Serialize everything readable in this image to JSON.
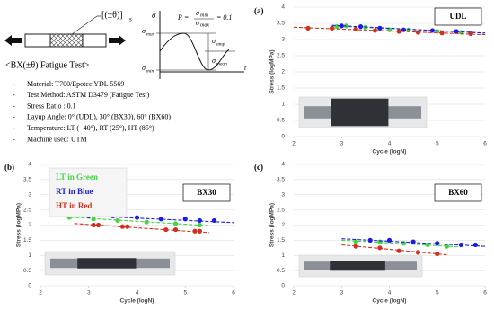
{
  "diagram": {
    "layup_label": "[(±θ)]",
    "layup_sub": "s",
    "formula": {
      "lhs": "R =",
      "num": "σ",
      "num_sub": "min",
      "den": "σ",
      "den_sub": "max",
      "rhs": "= 0.1"
    },
    "axis_sigma": "σ",
    "axis_t": "t",
    "levels": [
      {
        "sym": "σ",
        "sub": "max"
      },
      {
        "sym": "σ",
        "sub": "min"
      },
      {
        "sym": "σ",
        "sub": "amp"
      },
      {
        "sym": "σ",
        "sub": "mean"
      }
    ],
    "title": "<BX(±θ) Fatigue Test>",
    "items": [
      "Material: T700/Epotec YDL 5569",
      "Test Method: ASTM D3479 (Fatigue Test)",
      "Stress Ratio : 0.1",
      "Layup Angle: 0° (UDL), 30° (BX30), 60° (BX60)",
      "Temperature: LT (−40°), RT (25°), HT (85°)",
      "Machine used: UTM"
    ]
  },
  "chart_data": [
    {
      "type": "scatter",
      "panel_label": "(a)",
      "title": "UDL",
      "xlabel": "Cycle (logN)",
      "ylabel": "Stress (logMPa)",
      "xlim": [
        2,
        6
      ],
      "ylim": [
        0,
        4
      ],
      "xticks": [
        2,
        3,
        4,
        5,
        6
      ],
      "yticks": [
        0,
        0.5,
        1,
        1.5,
        2,
        2.5,
        3,
        3.5,
        4
      ],
      "grid": true,
      "series": [
        {
          "color": "#44d444",
          "x": [
            2.9,
            3.1,
            3.5,
            4.0,
            4.4,
            5.0,
            5.5
          ],
          "y": [
            3.4,
            3.42,
            3.38,
            3.3,
            3.3,
            3.25,
            3.22
          ],
          "trend_x": [
            2.8,
            6
          ],
          "trend_y": [
            3.42,
            3.2
          ]
        },
        {
          "color": "#1c1ce6",
          "x": [
            3.0,
            3.4,
            3.8,
            4.3,
            4.9,
            5.4,
            5.7
          ],
          "y": [
            3.42,
            3.4,
            3.35,
            3.3,
            3.28,
            3.25,
            3.2
          ],
          "trend_x": [
            2.8,
            6
          ],
          "trend_y": [
            3.44,
            3.2
          ]
        },
        {
          "color": "#d03020",
          "x": [
            2.3,
            2.8,
            3.3,
            3.7,
            4.2,
            4.6,
            5.1,
            5.7
          ],
          "y": [
            3.35,
            3.35,
            3.32,
            3.28,
            3.25,
            3.22,
            3.2,
            3.18
          ],
          "trend_x": [
            2,
            6
          ],
          "trend_y": [
            3.38,
            3.15
          ]
        }
      ]
    },
    {
      "type": "scatter",
      "panel_label": "(b)",
      "title": "BX30",
      "xlabel": "Cycle (logN)",
      "ylabel": "Stress (logMPa)",
      "xlim": [
        2,
        6
      ],
      "ylim": [
        0,
        4
      ],
      "xticks": [
        2,
        3,
        4,
        5,
        6
      ],
      "yticks": [
        0,
        0.5,
        1,
        1.5,
        2,
        2.5,
        3,
        3.5,
        4
      ],
      "grid": true,
      "legend": "top-left",
      "series": [
        {
          "name": "LT in Green",
          "color": "#44d444",
          "x": [
            2.6,
            3.1,
            3.6,
            4.2,
            4.8,
            5.3
          ],
          "y": [
            2.25,
            2.2,
            2.15,
            2.1,
            2.05,
            2.0
          ],
          "trend_x": [
            2.4,
            5.5
          ],
          "trend_y": [
            2.28,
            1.98
          ]
        },
        {
          "name": "RT in Blue",
          "color": "#1c1ce6",
          "x": [
            3.0,
            3.5,
            4.0,
            4.5,
            5.0,
            5.3,
            5.6
          ],
          "y": [
            2.3,
            2.3,
            2.25,
            2.2,
            2.2,
            2.15,
            2.15
          ],
          "trend_x": [
            2.4,
            6
          ],
          "trend_y": [
            2.35,
            2.08
          ]
        },
        {
          "name": "HT in Red",
          "color": "#d03020",
          "x": [
            3.1,
            3.2,
            3.7,
            3.8,
            4.6,
            4.8,
            5.2,
            5.3
          ],
          "y": [
            2.0,
            2.0,
            1.95,
            1.95,
            1.85,
            1.85,
            1.8,
            1.8
          ],
          "trend_x": [
            2.7,
            5.5
          ],
          "trend_y": [
            2.05,
            1.75
          ]
        }
      ]
    },
    {
      "type": "scatter",
      "panel_label": "(c)",
      "title": "BX60",
      "xlabel": "Cycle (logN)",
      "ylabel": "Stress (logMPa)",
      "xlim": [
        2,
        6
      ],
      "ylim": [
        0,
        4
      ],
      "xticks": [
        2,
        3,
        4,
        5,
        6
      ],
      "yticks": [
        0,
        0.5,
        1,
        1.5,
        2,
        2.5,
        3,
        3.5,
        4
      ],
      "grid": true,
      "series": [
        {
          "color": "#44d444",
          "x": [
            3.3,
            3.8,
            4.3,
            4.8,
            5.2
          ],
          "y": [
            1.45,
            1.45,
            1.4,
            1.35,
            1.3
          ],
          "trend_x": [
            3.0,
            5.5
          ],
          "trend_y": [
            1.5,
            1.28
          ]
        },
        {
          "color": "#1c1ce6",
          "x": [
            3.6,
            4.0,
            4.5,
            5.0,
            5.5,
            5.8
          ],
          "y": [
            1.5,
            1.5,
            1.45,
            1.4,
            1.35,
            1.35
          ],
          "trend_x": [
            3.0,
            6
          ],
          "trend_y": [
            1.55,
            1.3
          ]
        },
        {
          "color": "#d03020",
          "x": [
            3.3,
            3.8,
            4.2,
            4.6,
            5.0
          ],
          "y": [
            1.3,
            1.25,
            1.15,
            1.1,
            1.05
          ],
          "trend_x": [
            3.0,
            5.2
          ],
          "trend_y": [
            1.35,
            1.02
          ]
        }
      ]
    }
  ]
}
